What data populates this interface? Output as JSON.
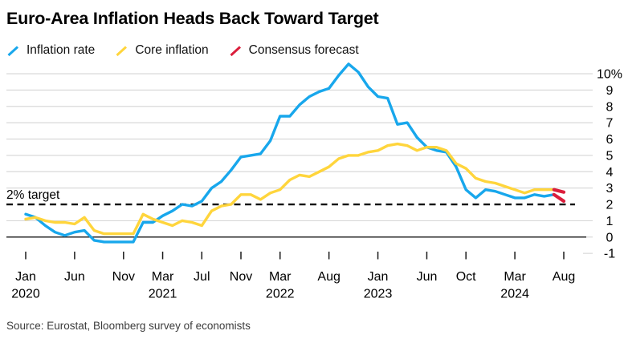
{
  "title": "Euro-Area Inflation Heads Back Toward Target",
  "target_label": "2% target",
  "source": "Source: Eurostat, Bloomberg survey of economists",
  "colors": {
    "inflation_rate": "#18A7EC",
    "core_inflation": "#FFD53C",
    "consensus_forecast": "#DB1E3C",
    "gridline": "#D9D9D9",
    "axis": "#1A1A1A",
    "target_dash": "#111111"
  },
  "legend": {
    "items": [
      {
        "label": "Inflation rate",
        "color": "#18A7EC"
      },
      {
        "label": "Core inflation",
        "color": "#FFD53C"
      },
      {
        "label": "Consensus forecast",
        "color": "#DB1E3C"
      }
    ]
  },
  "chart_data": {
    "type": "line",
    "x_unit": "month",
    "x_start": "2020-01",
    "x_end_actual": "2024-07",
    "x_end_forecast": "2024-08",
    "ylim": [
      -1,
      10
    ],
    "grid": true,
    "legend_position": "top",
    "target_line_value": 2,
    "yticks": [
      {
        "value": 10,
        "label": "10%"
      },
      {
        "value": 9,
        "label": "9"
      },
      {
        "value": 8,
        "label": "8"
      },
      {
        "value": 7,
        "label": "7"
      },
      {
        "value": 6,
        "label": "6"
      },
      {
        "value": 5,
        "label": "5"
      },
      {
        "value": 4,
        "label": "4"
      },
      {
        "value": 3,
        "label": "3"
      },
      {
        "value": 2,
        "label": "2"
      },
      {
        "value": 1,
        "label": "1"
      },
      {
        "value": 0,
        "label": "0"
      },
      {
        "value": -1,
        "label": "-1"
      }
    ],
    "xticks": [
      {
        "month_index": 0,
        "label": "Jan",
        "year": "2020"
      },
      {
        "month_index": 5,
        "label": "Jun",
        "year": ""
      },
      {
        "month_index": 10,
        "label": "Nov",
        "year": ""
      },
      {
        "month_index": 14,
        "label": "Mar",
        "year": "2021"
      },
      {
        "month_index": 18,
        "label": "Jul",
        "year": ""
      },
      {
        "month_index": 22,
        "label": "Nov",
        "year": ""
      },
      {
        "month_index": 26,
        "label": "Mar",
        "year": "2022"
      },
      {
        "month_index": 31,
        "label": "Aug",
        "year": ""
      },
      {
        "month_index": 36,
        "label": "Jan",
        "year": "2023"
      },
      {
        "month_index": 41,
        "label": "Jun",
        "year": ""
      },
      {
        "month_index": 45,
        "label": "Oct",
        "year": ""
      },
      {
        "month_index": 50,
        "label": "Mar",
        "year": "2024"
      },
      {
        "month_index": 55,
        "label": "Aug",
        "year": ""
      }
    ],
    "series": [
      {
        "name": "Inflation rate",
        "color": "#18A7EC",
        "values": [
          1.4,
          1.2,
          0.7,
          0.3,
          0.1,
          0.3,
          0.4,
          -0.2,
          -0.3,
          -0.3,
          -0.3,
          -0.3,
          0.9,
          0.9,
          1.3,
          1.6,
          2.0,
          1.9,
          2.2,
          3.0,
          3.4,
          4.1,
          4.9,
          5.0,
          5.1,
          5.9,
          7.4,
          7.4,
          8.1,
          8.6,
          8.9,
          9.1,
          9.9,
          10.6,
          10.1,
          9.2,
          8.6,
          8.5,
          6.9,
          7.0,
          6.1,
          5.5,
          5.3,
          5.2,
          4.3,
          2.9,
          2.4,
          2.9,
          2.8,
          2.6,
          2.4,
          2.4,
          2.6,
          2.5,
          2.6
        ]
      },
      {
        "name": "Core inflation",
        "color": "#FFD53C",
        "values": [
          1.1,
          1.2,
          1.0,
          0.9,
          0.9,
          0.8,
          1.2,
          0.4,
          0.2,
          0.2,
          0.2,
          0.2,
          1.4,
          1.1,
          0.9,
          0.7,
          1.0,
          0.9,
          0.7,
          1.6,
          1.9,
          2.0,
          2.6,
          2.6,
          2.3,
          2.7,
          2.9,
          3.5,
          3.8,
          3.7,
          4.0,
          4.3,
          4.8,
          5.0,
          5.0,
          5.2,
          5.3,
          5.6,
          5.7,
          5.6,
          5.3,
          5.5,
          5.5,
          5.3,
          4.5,
          4.2,
          3.6,
          3.4,
          3.3,
          3.1,
          2.9,
          2.7,
          2.9,
          2.9,
          2.9
        ]
      }
    ],
    "forecast": {
      "name": "Consensus forecast",
      "color": "#DB1E3C",
      "segments": [
        {
          "series": "Inflation rate",
          "from_month_index": 54,
          "to_month_index": 55,
          "from_value": 2.6,
          "to_value": 2.2
        },
        {
          "series": "Core inflation",
          "from_month_index": 54,
          "to_month_index": 55,
          "from_value": 2.9,
          "to_value": 2.75
        }
      ]
    }
  }
}
